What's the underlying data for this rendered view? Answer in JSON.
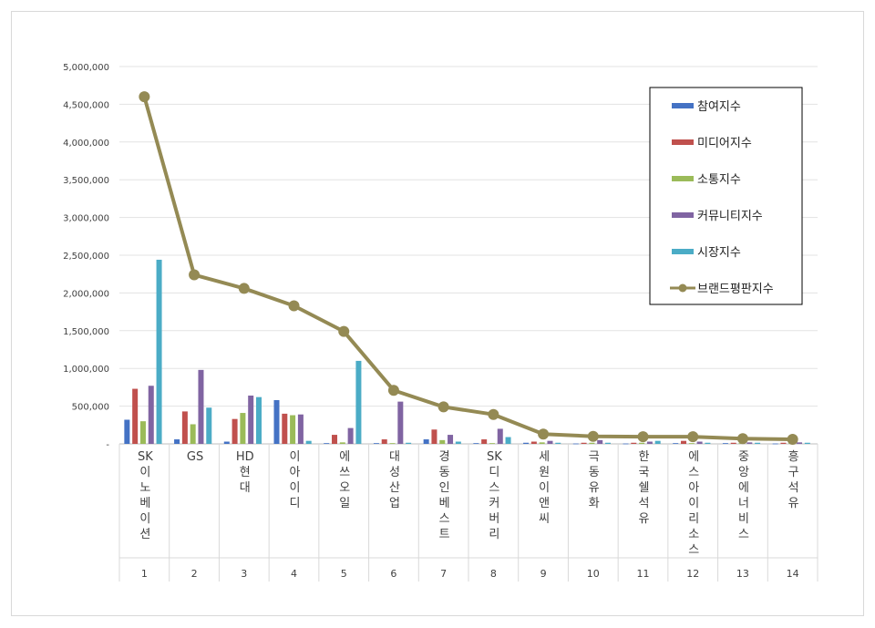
{
  "chart_data": {
    "type": "bar",
    "categories": [
      "SK이노베이션",
      "GS",
      "HD현대",
      "이아이디",
      "에쓰오일",
      "대성산업",
      "경동인베스트",
      "SK디스커버리",
      "세원이앤씨",
      "극동유화",
      "한국쉘석유",
      "에스아이리소스",
      "중앙에너비스",
      "흥구석유"
    ],
    "ranks": [
      "1",
      "2",
      "3",
      "4",
      "5",
      "6",
      "7",
      "8",
      "9",
      "10",
      "11",
      "12",
      "13",
      "14"
    ],
    "ylim": [
      0,
      5000000
    ],
    "yticks": [
      "-",
      "500,000",
      "1,000,000",
      "1,500,000",
      "2,000,000",
      "2,500,000",
      "3,000,000",
      "3,500,000",
      "4,000,000",
      "4,500,000",
      "5,000,000"
    ],
    "grid": true,
    "legend_position": "top-right",
    "series": [
      {
        "name": "참여지수",
        "kind": "bar",
        "color": "#4472c4",
        "values": [
          320000,
          60000,
          30000,
          580000,
          10000,
          10000,
          60000,
          10000,
          15000,
          5000,
          5000,
          10000,
          10000,
          5000
        ]
      },
      {
        "name": "미디어지수",
        "kind": "bar",
        "color": "#c0504d",
        "values": [
          730000,
          430000,
          330000,
          400000,
          120000,
          60000,
          190000,
          60000,
          30000,
          15000,
          15000,
          40000,
          15000,
          15000
        ]
      },
      {
        "name": "소통지수",
        "kind": "bar",
        "color": "#9bbb59",
        "values": [
          300000,
          260000,
          410000,
          380000,
          20000,
          10000,
          50000,
          10000,
          20000,
          15000,
          15000,
          10000,
          10000,
          10000
        ]
      },
      {
        "name": "커뮤니티지수",
        "kind": "bar",
        "color": "#8064a2",
        "values": [
          770000,
          980000,
          640000,
          390000,
          210000,
          560000,
          120000,
          200000,
          40000,
          50000,
          30000,
          30000,
          20000,
          20000
        ]
      },
      {
        "name": "시장지수",
        "kind": "bar",
        "color": "#4bacc6",
        "values": [
          2440000,
          480000,
          620000,
          40000,
          1100000,
          15000,
          30000,
          90000,
          15000,
          15000,
          40000,
          15000,
          15000,
          15000
        ]
      },
      {
        "name": "브랜드평판지수",
        "kind": "line",
        "color": "#948a54",
        "values": [
          4600000,
          2240000,
          2060000,
          1830000,
          1490000,
          710000,
          490000,
          390000,
          130000,
          100000,
          95000,
          95000,
          70000,
          60000
        ]
      }
    ]
  }
}
